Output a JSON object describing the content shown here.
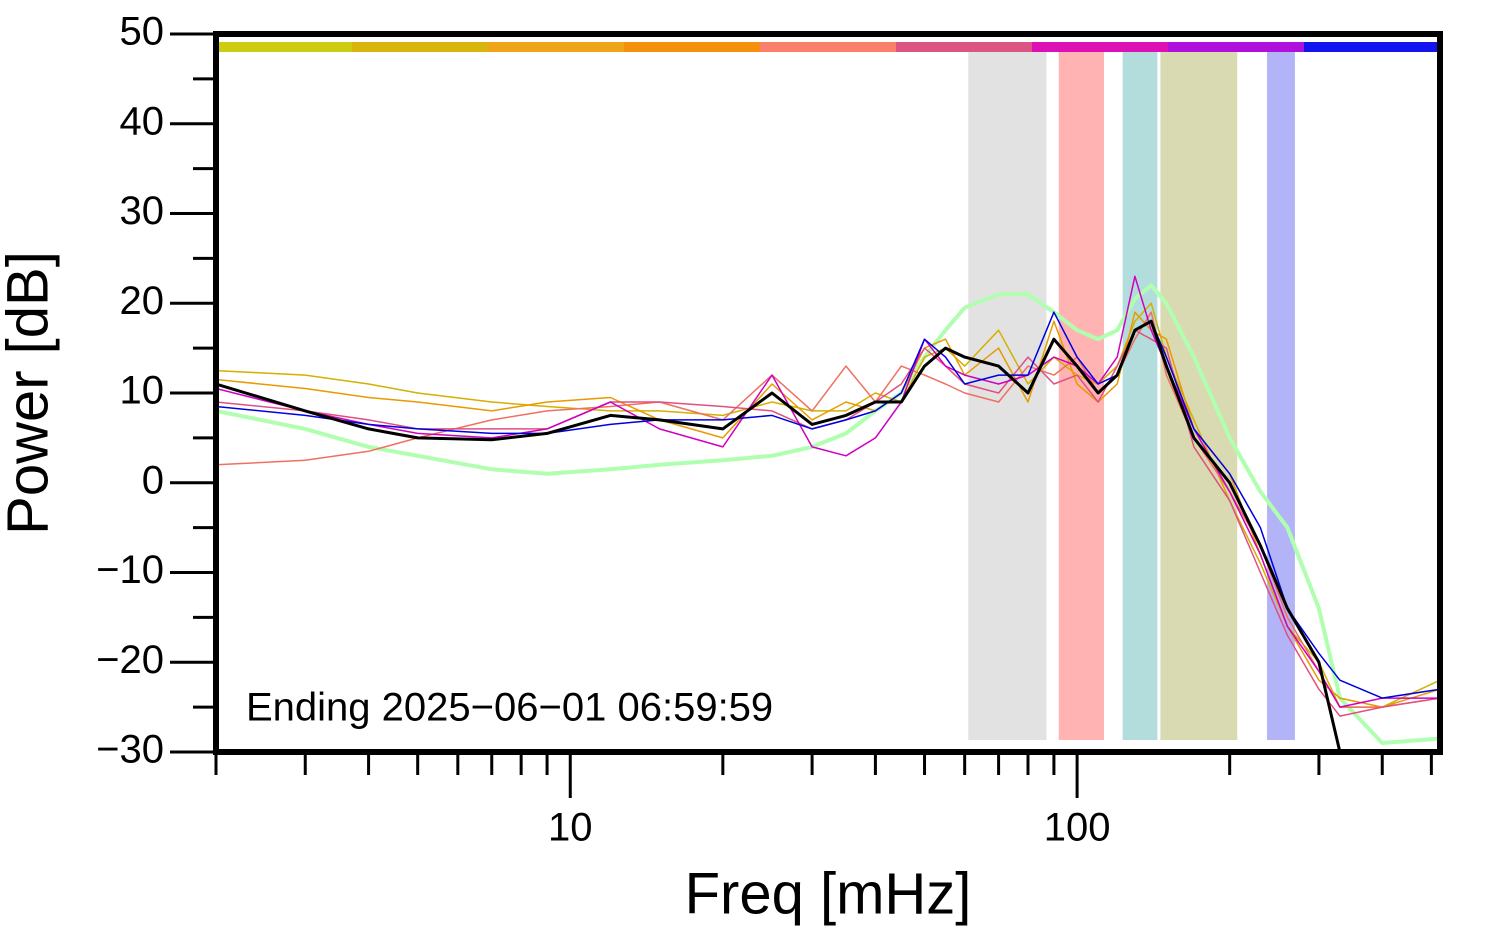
{
  "chart_data": {
    "type": "line",
    "xlabel": "Freq [mHz]",
    "ylabel": "Power [dB]",
    "annotation": "Ending 2025−06−01 06:59:59",
    "log_x": true,
    "xlim": [
      2,
      520
    ],
    "ylim": [
      -30,
      50
    ],
    "xticks": [
      10,
      100
    ],
    "xminor_ticks": [
      2,
      3,
      4,
      5,
      6,
      7,
      8,
      9,
      20,
      30,
      40,
      50,
      60,
      70,
      80,
      90,
      200,
      300,
      400,
      500
    ],
    "yticks": [
      {
        "value": -30,
        "label": "−30"
      },
      {
        "value": -20,
        "label": "−20"
      },
      {
        "value": -10,
        "label": "−10"
      },
      0,
      10,
      20,
      30,
      40,
      50
    ],
    "yminor_ticks": [
      -25,
      -15,
      -5,
      5,
      15,
      25,
      35,
      45
    ],
    "top_bar_colors": [
      "#cccc10",
      "#d8b40c",
      "#f0a418",
      "#f5900c",
      "#fb806c",
      "#dc5484",
      "#dc10b4",
      "#b010dc",
      "#1414f0"
    ],
    "bands": [
      {
        "x": [
          61,
          87
        ],
        "color": "#e2e2e2"
      },
      {
        "x": [
          92,
          113
        ],
        "color": "#ffb3b3"
      },
      {
        "x": [
          123,
          144
        ],
        "color": "#b3dcdc"
      },
      {
        "x": [
          146,
          207
        ],
        "color": "#dadab2"
      },
      {
        "x": [
          237,
          269
        ],
        "color": "#b3b3f8"
      }
    ],
    "x": [
      2,
      3,
      4,
      5,
      7,
      9,
      12,
      15,
      20,
      25,
      30,
      35,
      40,
      45,
      50,
      55,
      60,
      70,
      80,
      90,
      100,
      110,
      120,
      130,
      140,
      150,
      170,
      200,
      230,
      260,
      300,
      330,
      400,
      520
    ],
    "series": [
      {
        "color": "#b0ffb0",
        "width": 4,
        "values": [
          8,
          6,
          4,
          3,
          1.5,
          1,
          1.5,
          2,
          2.5,
          3,
          4,
          5.5,
          8,
          10,
          14,
          17,
          19.5,
          21,
          21,
          19,
          17,
          16,
          17,
          20.5,
          22,
          20,
          14,
          5,
          -1,
          -5,
          -14,
          -24,
          -29,
          -28.5
        ]
      },
      {
        "color": "#d4b000",
        "width": 1.5,
        "values": [
          12.5,
          12,
          11,
          10,
          9,
          8.5,
          8,
          8,
          7.5,
          9,
          8,
          8,
          10,
          9,
          14,
          15,
          13,
          17,
          11,
          14,
          12,
          11,
          13,
          18,
          20,
          14,
          7,
          -2,
          -9,
          -16,
          -20,
          -25,
          -25,
          -22
        ]
      },
      {
        "color": "#e89a00",
        "width": 1.5,
        "values": [
          11.5,
          10.5,
          9.5,
          9,
          8,
          9,
          9.5,
          7,
          5,
          11,
          7,
          9,
          8,
          10,
          15,
          16,
          12,
          15,
          9,
          18,
          11,
          9,
          11,
          19,
          17,
          16,
          6,
          1,
          -8,
          -16,
          -22,
          -24,
          -25,
          -23
        ]
      },
      {
        "color": "#f07060",
        "width": 1.5,
        "values": [
          2,
          2.5,
          3.5,
          5,
          7,
          8,
          8.5,
          9,
          7,
          12,
          8,
          13,
          9,
          13,
          12,
          11,
          10,
          9,
          13,
          12,
          14,
          10,
          12,
          16,
          19,
          12,
          5,
          -1,
          -7,
          -15,
          -21,
          -25,
          -25,
          -24
        ]
      },
      {
        "color": "#e05080",
        "width": 1.5,
        "values": [
          9,
          8,
          7,
          6,
          6,
          6,
          9,
          9,
          8.5,
          8,
          6,
          7,
          9,
          11,
          15,
          13,
          11,
          10,
          14,
          11,
          12,
          9,
          13,
          17,
          16,
          15,
          4,
          -2,
          -10,
          -17,
          -23,
          -26,
          -25,
          -24
        ]
      },
      {
        "color": "#d000c0",
        "width": 1.5,
        "values": [
          10.5,
          8,
          6.5,
          5.5,
          5,
          6,
          9,
          6,
          4,
          12,
          4,
          3,
          5,
          9,
          16,
          13,
          12,
          11,
          12,
          14,
          13,
          11,
          14,
          23,
          17,
          13,
          6,
          -1,
          -8,
          -16,
          -21,
          -25,
          -24,
          -24
        ]
      },
      {
        "color": "#0000e0",
        "width": 1.5,
        "values": [
          8.5,
          7.5,
          6.5,
          6,
          5.5,
          5.5,
          6.5,
          7,
          7,
          7.5,
          6,
          7,
          8,
          10,
          16,
          14,
          11,
          12,
          12,
          19,
          14,
          11,
          12,
          17,
          18,
          14,
          6,
          1,
          -5,
          -14,
          -19,
          -22,
          -24,
          -23
        ]
      },
      {
        "color": "#000000",
        "width": 3,
        "values": [
          11,
          8,
          6,
          5,
          4.8,
          5.5,
          7.5,
          7,
          6,
          10,
          6.5,
          7.5,
          9,
          9,
          13,
          15,
          14,
          13,
          10,
          16,
          13,
          10,
          12,
          17,
          18,
          13,
          5,
          0,
          -7,
          -14,
          -20,
          -30,
          null,
          null
        ]
      }
    ]
  }
}
